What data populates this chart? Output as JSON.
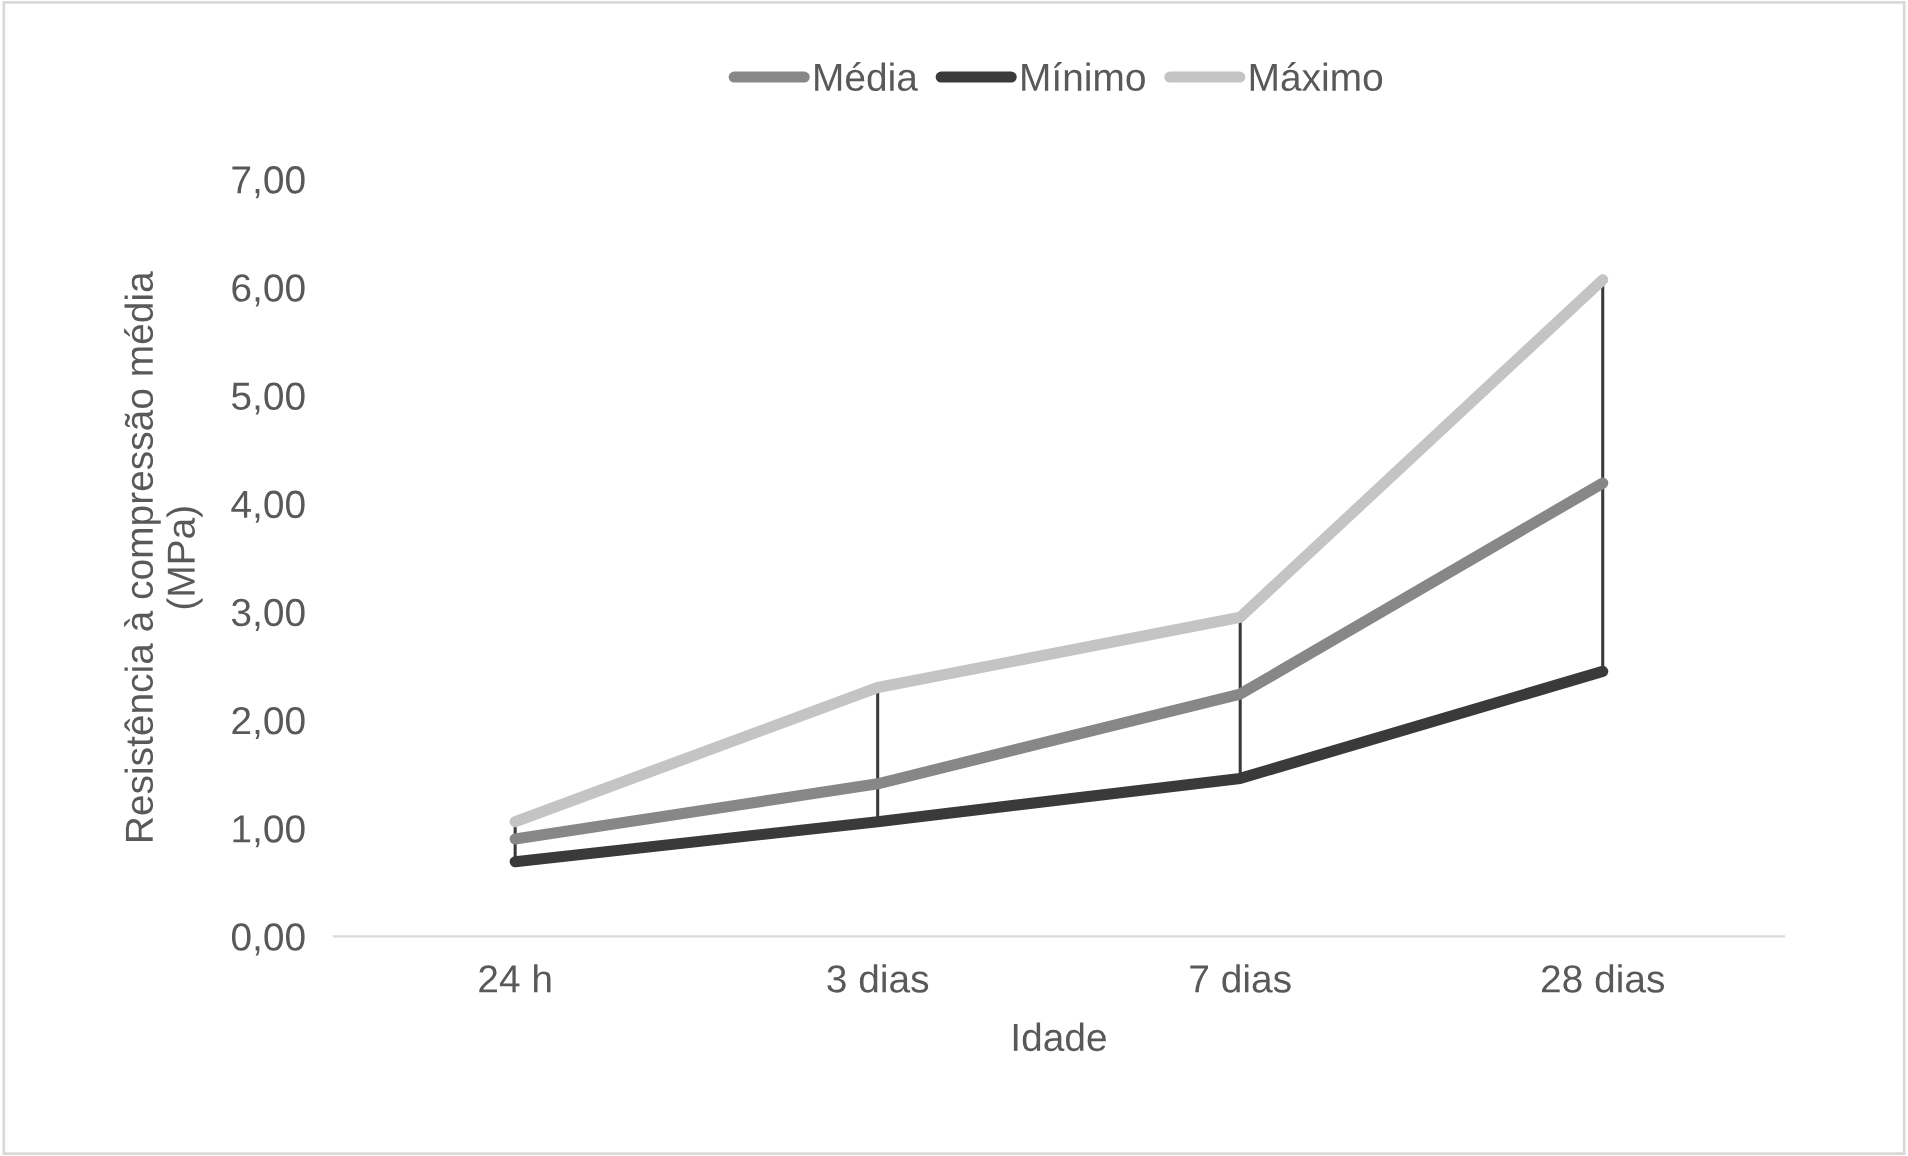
{
  "chart_data": {
    "type": "line",
    "xlabel": "Idade",
    "ylabel": "Resistência à compressão média\n(MPa)",
    "categories": [
      "24 h",
      "3 dias",
      "7 dias",
      "28 dias"
    ],
    "series": [
      {
        "name": "Média",
        "color": "#878787",
        "values": [
          0.9,
          1.41,
          2.24,
          4.19
        ],
        "errors": [
          [
            0.69,
            1.06
          ],
          [
            1.06,
            2.3
          ],
          [
            1.46,
            2.95
          ],
          [
            2.45,
            6.07
          ]
        ]
      },
      {
        "name": "Mínimo",
        "color": "#3a3a3a",
        "values": [
          0.69,
          1.06,
          1.46,
          2.45
        ]
      },
      {
        "name": "Máximo",
        "color": "#c4c4c4",
        "values": [
          1.06,
          2.3,
          2.95,
          6.07
        ]
      }
    ],
    "ylim": [
      0,
      7
    ],
    "yticks": [
      {
        "value": 0,
        "label": "0,00"
      },
      {
        "value": 1,
        "label": "1,00"
      },
      {
        "value": 2,
        "label": "2,00"
      },
      {
        "value": 3,
        "label": "3,00"
      },
      {
        "value": 4,
        "label": "4,00"
      },
      {
        "value": 5,
        "label": "5,00"
      },
      {
        "value": 6,
        "label": "6,00"
      },
      {
        "value": 7,
        "label": "7,00"
      }
    ],
    "grid": false,
    "legend": "top"
  }
}
